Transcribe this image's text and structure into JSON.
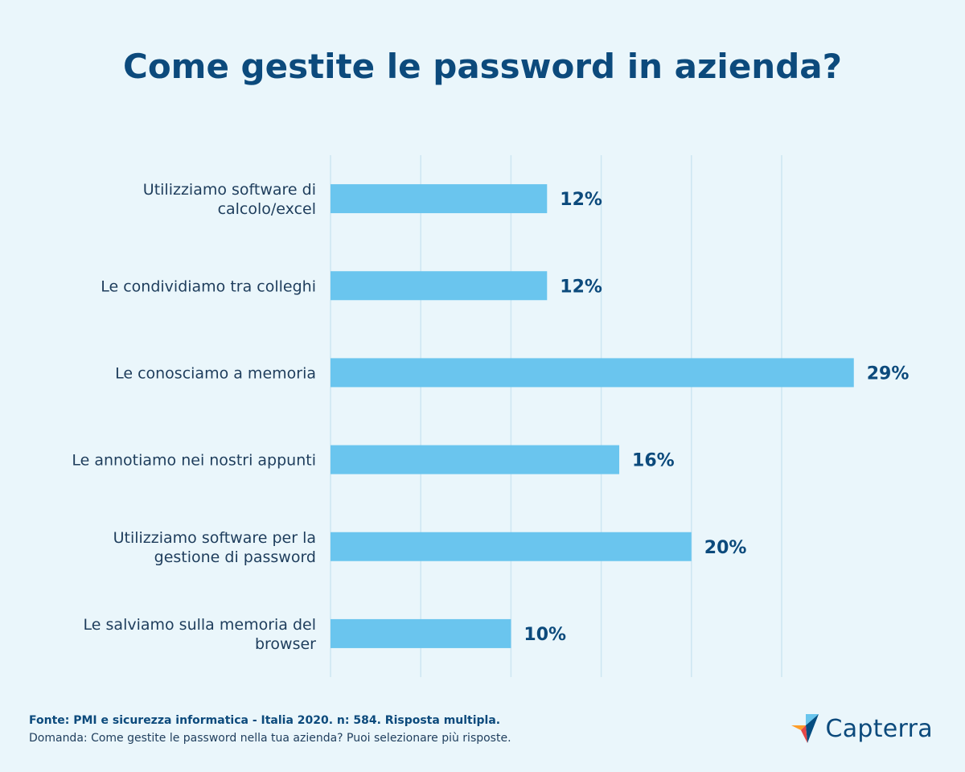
{
  "chart_data": {
    "type": "bar",
    "orientation": "horizontal",
    "title": "Come gestite le password in azienda?",
    "categories": [
      [
        "Utilizziamo software di",
        "calcolo/excel"
      ],
      [
        "Le condividiamo tra colleghi"
      ],
      [
        "Le conosciamo a memoria"
      ],
      [
        "Le annotiamo nei nostri appunti"
      ],
      [
        "Utilizziamo software per la",
        "gestione di password"
      ],
      [
        "Le salviamo sulla memoria del",
        "browser"
      ]
    ],
    "values": [
      12,
      12,
      29,
      16,
      20,
      10
    ],
    "value_labels": [
      "12%",
      "12%",
      "29%",
      "16%",
      "20%",
      "10%"
    ],
    "xlim": [
      0,
      25
    ],
    "grid": true,
    "colors": {
      "bar": "#6ac5ee",
      "grid": "#cde6f2",
      "value": "#0c4a7c"
    }
  },
  "footer": {
    "source": "Fonte: PMI e sicurezza informatica - Italia 2020. n: 584. Risposta multipla.",
    "question": "Domanda: Come gestite le password nella tua azienda? Puoi selezionare più risposte."
  },
  "brand": {
    "name": "Capterra",
    "icon": "capterra-logo-icon"
  }
}
